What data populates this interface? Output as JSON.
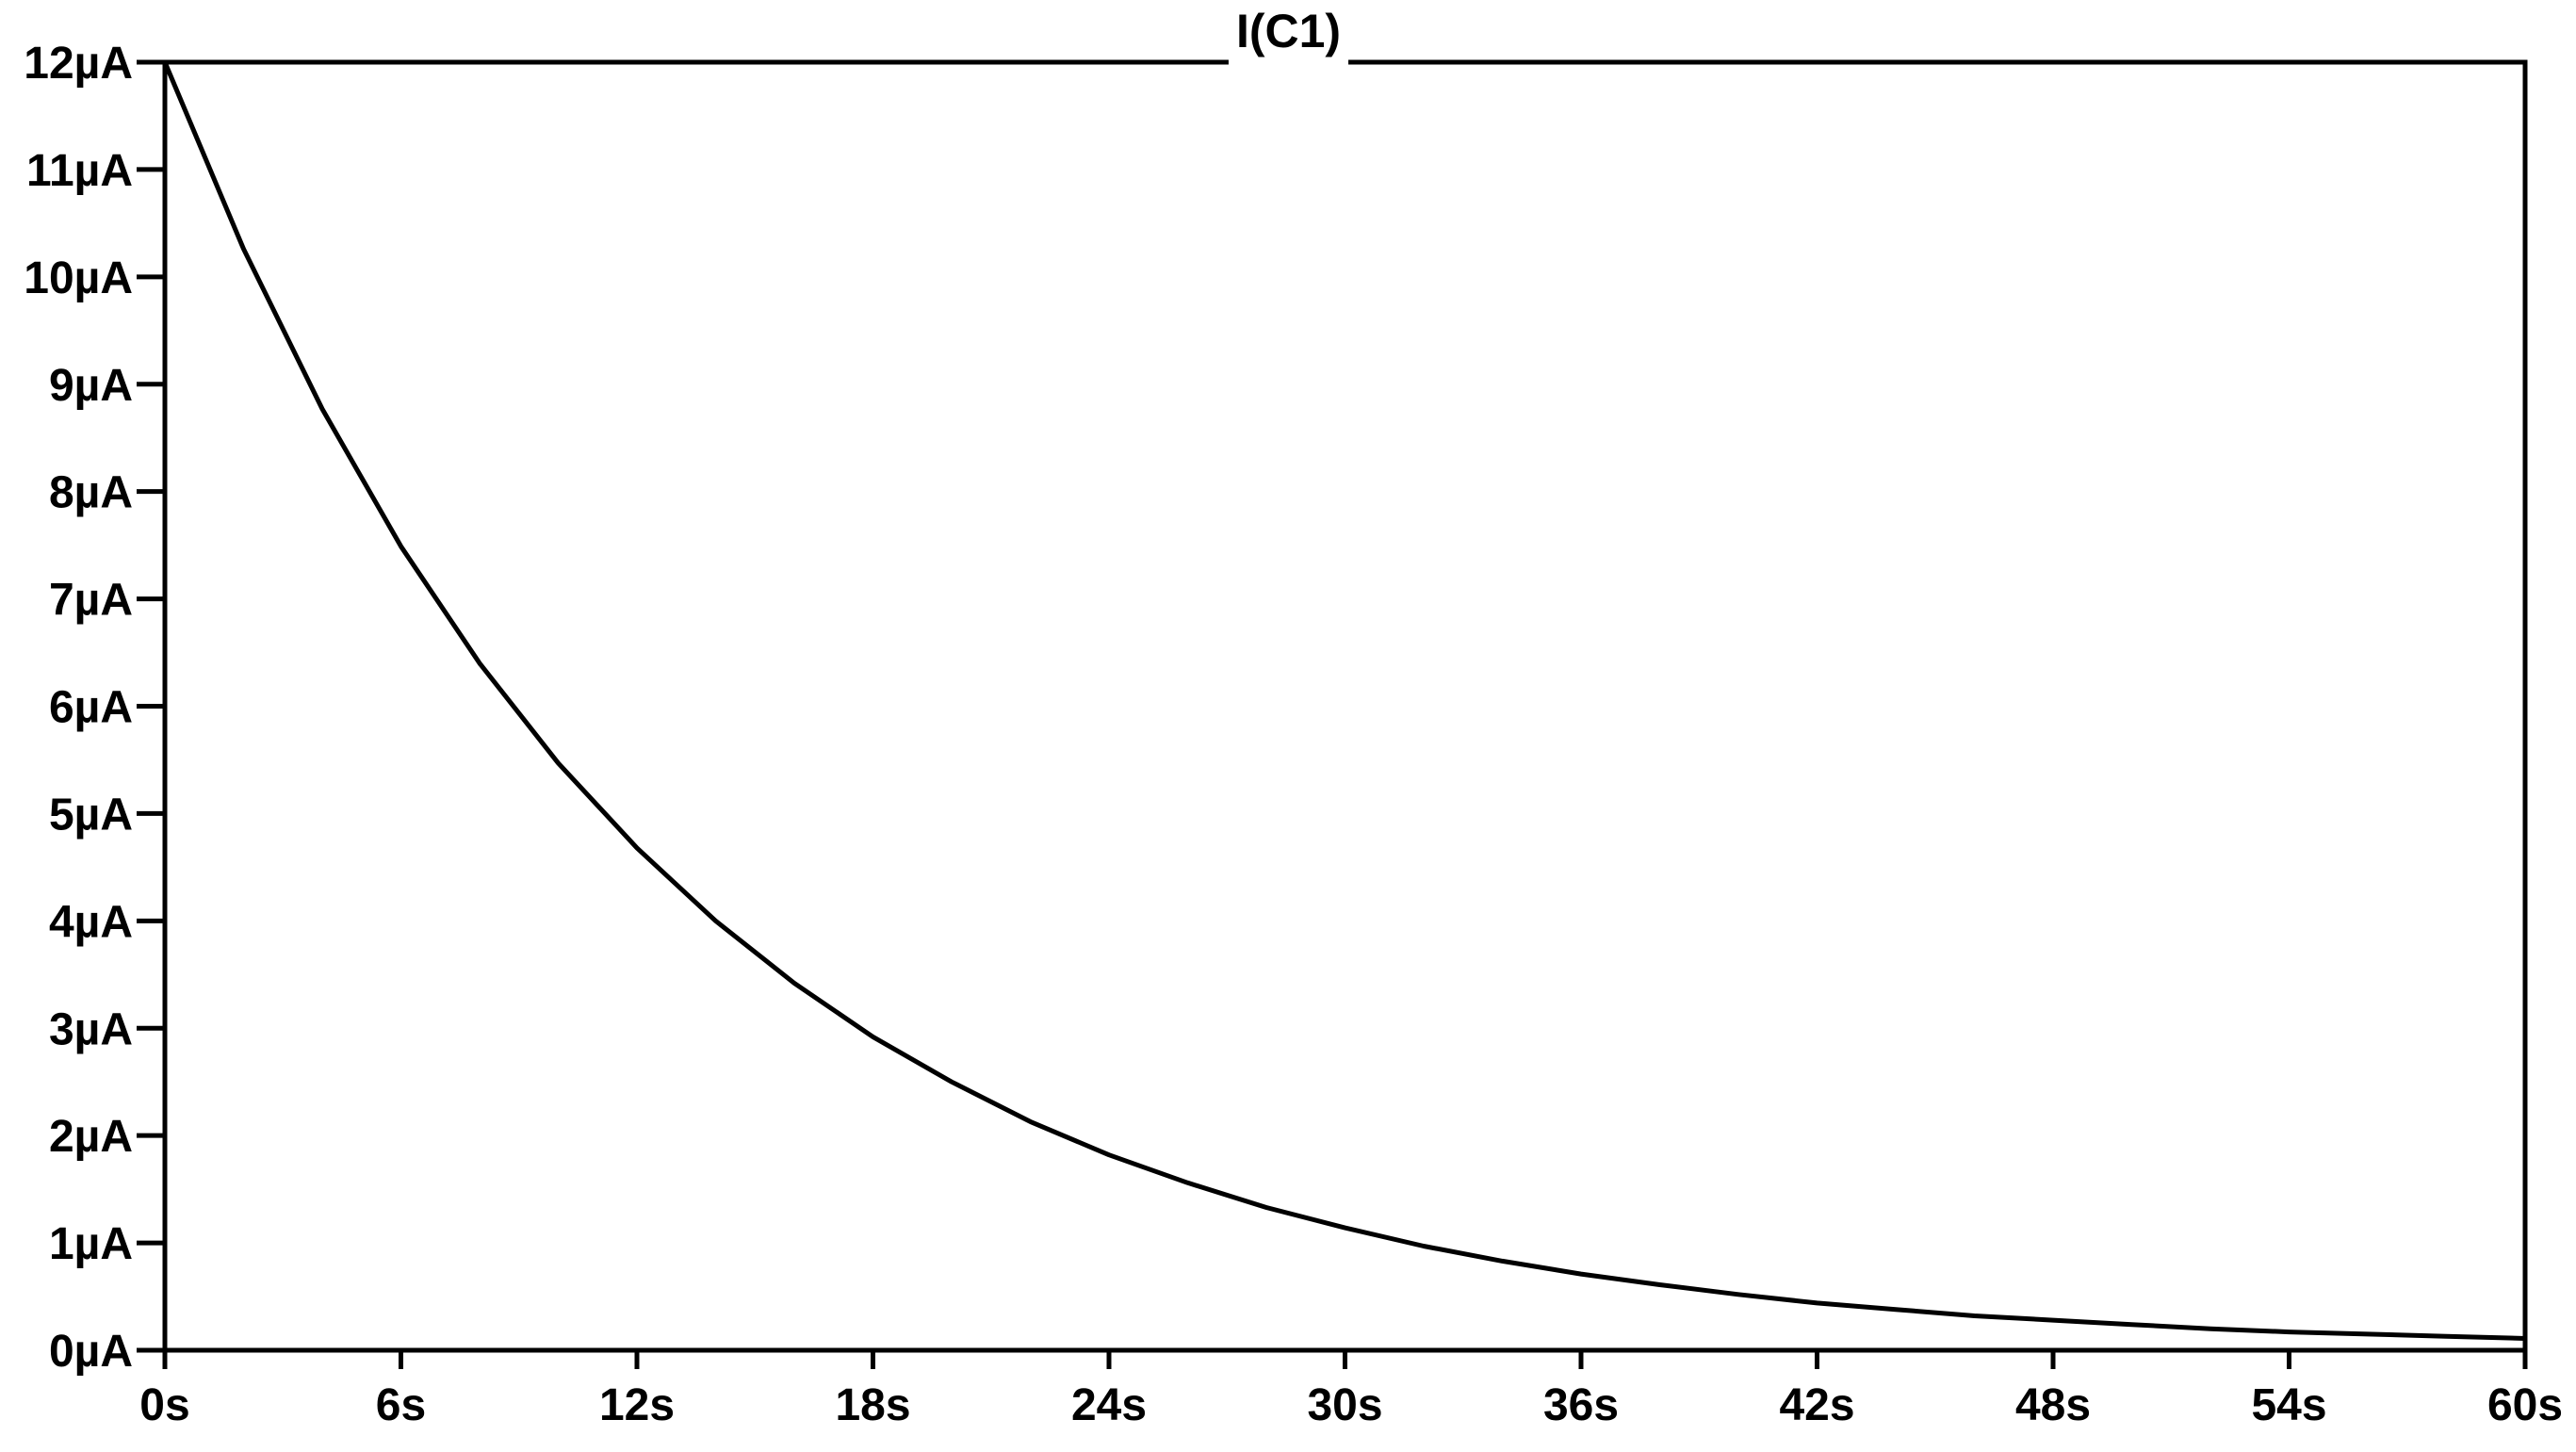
{
  "chart_data": {
    "type": "line",
    "title": "I(C1)",
    "xlabel": "",
    "ylabel": "",
    "xlim": [
      0,
      60
    ],
    "ylim": [
      0,
      12
    ],
    "x_ticks": [
      {
        "value": 0,
        "label": "0s"
      },
      {
        "value": 6,
        "label": "6s"
      },
      {
        "value": 12,
        "label": "12s"
      },
      {
        "value": 18,
        "label": "18s"
      },
      {
        "value": 24,
        "label": "24s"
      },
      {
        "value": 30,
        "label": "30s"
      },
      {
        "value": 36,
        "label": "36s"
      },
      {
        "value": 42,
        "label": "42s"
      },
      {
        "value": 48,
        "label": "48s"
      },
      {
        "value": 54,
        "label": "54s"
      },
      {
        "value": 60,
        "label": "60s"
      }
    ],
    "y_ticks": [
      {
        "value": 0,
        "label": "0µA"
      },
      {
        "value": 1,
        "label": "1µA"
      },
      {
        "value": 2,
        "label": "2µA"
      },
      {
        "value": 3,
        "label": "3µA"
      },
      {
        "value": 4,
        "label": "4µA"
      },
      {
        "value": 5,
        "label": "5µA"
      },
      {
        "value": 6,
        "label": "6µA"
      },
      {
        "value": 7,
        "label": "7µA"
      },
      {
        "value": 8,
        "label": "8µA"
      },
      {
        "value": 9,
        "label": "9µA"
      },
      {
        "value": 10,
        "label": "10µA"
      },
      {
        "value": 11,
        "label": "11µA"
      },
      {
        "value": 12,
        "label": "12µA"
      }
    ],
    "grid": false,
    "colors": {
      "line": "#000000",
      "axes": "#000000",
      "background": "#ffffff"
    },
    "series": [
      {
        "name": "I(C1)",
        "x": [
          0,
          2,
          4,
          6,
          8,
          10,
          12,
          14,
          16,
          18,
          20,
          22,
          24,
          26,
          28,
          30,
          32,
          34,
          36,
          38,
          40,
          42,
          44,
          46,
          48,
          50,
          52,
          54,
          56,
          58,
          60
        ],
        "y": [
          12.0,
          10.26,
          8.77,
          7.49,
          6.4,
          5.47,
          4.68,
          4.0,
          3.42,
          2.92,
          2.5,
          2.13,
          1.82,
          1.56,
          1.33,
          1.14,
          0.97,
          0.83,
          0.71,
          0.61,
          0.52,
          0.44,
          0.38,
          0.32,
          0.28,
          0.24,
          0.2,
          0.17,
          0.15,
          0.13,
          0.11
        ]
      }
    ]
  }
}
